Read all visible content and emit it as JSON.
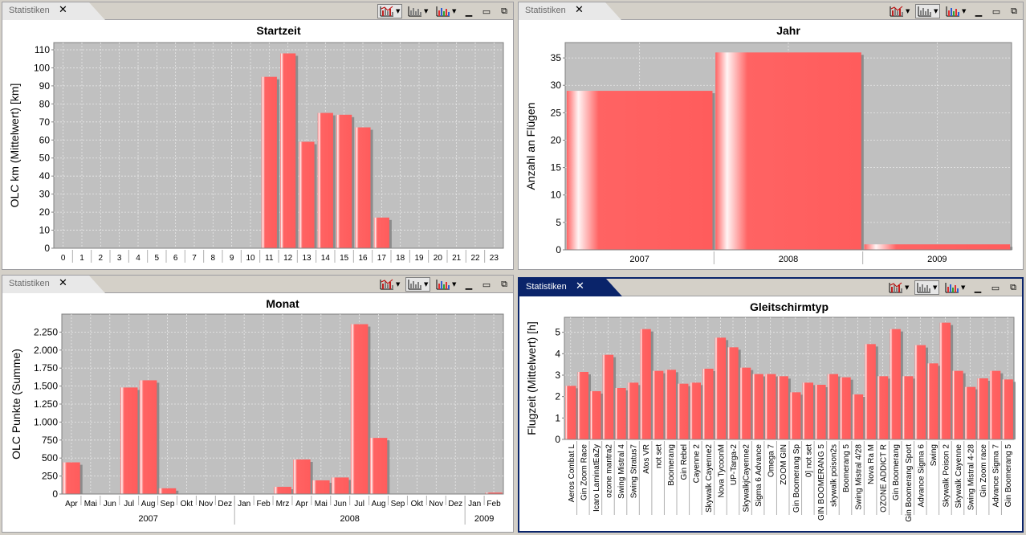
{
  "tab_label": "Statistiken",
  "colors": {
    "bar": "#ff6363",
    "bar_light": "#fff4f4",
    "plot_bg": "#c0c0c0",
    "shadow": "#8c8c8c",
    "grid": "#e8e8e8"
  },
  "toolbar_icons": [
    "bar-chart-icon",
    "bar-chart-icon",
    "color-bar-chart-icon",
    "minimize-icon",
    "maximize-icon",
    "restore-icon"
  ],
  "chart_data": [
    {
      "type": "bar",
      "title": "Startzeit",
      "ylabel": "OLC km (Mittelwert) [km]",
      "xlabel": "",
      "categories": [
        "0",
        "1",
        "2",
        "3",
        "4",
        "5",
        "6",
        "7",
        "8",
        "9",
        "10",
        "11",
        "12",
        "13",
        "14",
        "15",
        "16",
        "17",
        "18",
        "19",
        "20",
        "21",
        "22",
        "23"
      ],
      "values": [
        0,
        0,
        0,
        0,
        0,
        0,
        0,
        0,
        0,
        0,
        0,
        95,
        108,
        59,
        75,
        74,
        67,
        17,
        0,
        0,
        0,
        0,
        0,
        0
      ],
      "ylim": [
        0,
        114
      ],
      "yticks": [
        0,
        10,
        20,
        30,
        40,
        50,
        60,
        70,
        80,
        90,
        100,
        110
      ],
      "ytick_labels": [
        "0",
        "10",
        "20",
        "30",
        "40",
        "50",
        "60",
        "70",
        "80",
        "90",
        "100",
        "110"
      ],
      "grid": true
    },
    {
      "type": "bar",
      "title": "Jahr",
      "ylabel": "Anzahl an Flügen",
      "xlabel": "",
      "categories": [
        "2007",
        "2008",
        "2009"
      ],
      "values": [
        29,
        36,
        1
      ],
      "ylim": [
        0,
        37.8
      ],
      "yticks": [
        0,
        5,
        10,
        15,
        20,
        25,
        30,
        35
      ],
      "ytick_labels": [
        "0",
        "5",
        "10",
        "15",
        "20",
        "25",
        "30",
        "35"
      ],
      "grid": true
    },
    {
      "type": "bar",
      "title": "Monat",
      "ylabel": "OLC Punkte (Summe)",
      "xlabel": "",
      "categories": [
        "Apr",
        "Mai",
        "Jun",
        "Jul",
        "Aug",
        "Sep",
        "Okt",
        "Nov",
        "Dez",
        "Jan",
        "Feb",
        "Mrz",
        "Apr",
        "Mai",
        "Jun",
        "Jul",
        "Aug",
        "Sep",
        "Okt",
        "Nov",
        "Dez",
        "Jan",
        "Feb"
      ],
      "groups": [
        {
          "label": "2007",
          "count": 9
        },
        {
          "label": "2008",
          "count": 12
        },
        {
          "label": "2009",
          "count": 2
        }
      ],
      "values": [
        440,
        0,
        0,
        1480,
        1580,
        80,
        0,
        0,
        0,
        0,
        0,
        100,
        480,
        190,
        230,
        2360,
        780,
        0,
        0,
        0,
        0,
        0,
        20
      ],
      "ylim": [
        0,
        2500
      ],
      "yticks": [
        0,
        250,
        500,
        750,
        1000,
        1250,
        1500,
        1750,
        2000,
        2250
      ],
      "ytick_labels": [
        "0",
        "250",
        "500",
        "750",
        "1.000",
        "1.250",
        "1.500",
        "1.750",
        "2.000",
        "2.250"
      ],
      "grid": true
    },
    {
      "type": "bar",
      "title": "Gleitschirmtyp",
      "ylabel": "Flugzeit (Mittelwert) [h]",
      "xlabel": "",
      "categories": [
        "Aeros Combat L",
        "Gin Zoom Race",
        "Icaro LaminatEaZy",
        "ozone mantra2",
        "Swing Mistral 4",
        "Swing Stratus7",
        "Atos VR",
        "not set",
        "Boomerang",
        "Gin Rebel",
        "Cayenne 2",
        "Skywalk Cayenne2",
        "Nova TycoonM",
        "UP-Targa-2",
        "SkywalkjCayenne2",
        "Sigma 6 Advance",
        "Omega 7",
        "ZOOM GIN",
        "Gin Boomerang Sp",
        "0] not set",
        "GIN BOOMERANG 5",
        "skywalk poison2s",
        "Boomerang 5",
        "Swing Mistral 4/28",
        "Nova Ra M",
        "OZONE ADDICT R",
        "Gin Boomerang",
        "Gin Boomerang Sport",
        "Advance Sigma 6",
        "Swing",
        "Skywalk Poison 2",
        "Skywalk Cayenne",
        "Swing Mistral 4-28",
        "Gin Zoom race",
        "Advance Sigma 7",
        "Gin Boomerang 5"
      ],
      "values": [
        2.5,
        3.15,
        2.25,
        3.95,
        2.4,
        2.65,
        5.15,
        3.2,
        3.25,
        2.6,
        2.65,
        3.3,
        4.75,
        4.3,
        3.35,
        3.05,
        3.05,
        2.95,
        2.2,
        2.65,
        2.55,
        3.05,
        2.9,
        2.1,
        4.45,
        2.95,
        5.15,
        2.95,
        4.4,
        3.55,
        5.45,
        3.2,
        2.45,
        2.85,
        3.2,
        2.8
      ],
      "ylim": [
        0,
        5.7
      ],
      "yticks": [
        0,
        1,
        2,
        3,
        4,
        5
      ],
      "ytick_labels": [
        "0",
        "1",
        "2",
        "3",
        "4",
        "5"
      ],
      "grid": true
    }
  ]
}
